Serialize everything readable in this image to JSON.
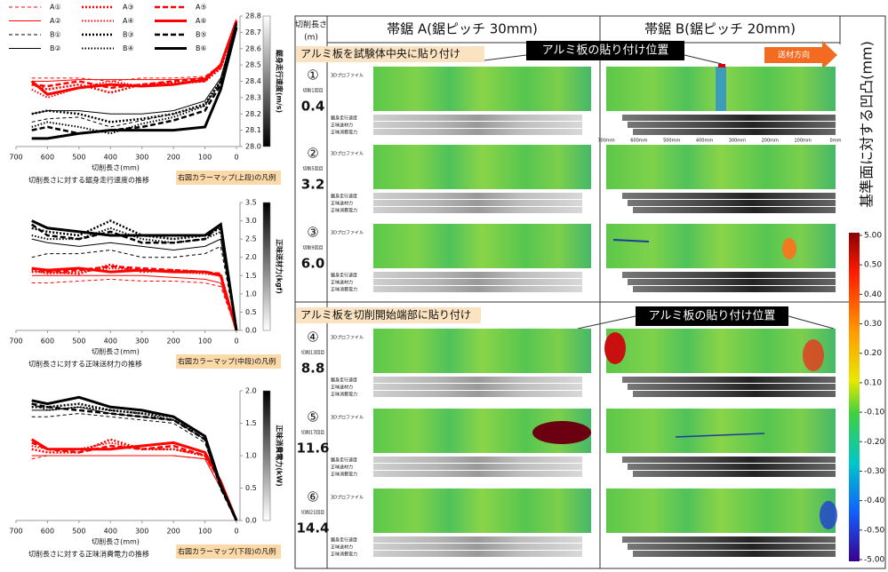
{
  "chart_data": [
    {
      "type": "line",
      "xlabel": "切削長さ(mm)",
      "ylabel": "鋸身走行速度(m/s)",
      "caption": "切削長さに対する鋸身走行速度の推移",
      "note": "右図カラーマップ(上段)の凡例",
      "legend": "top-left",
      "x": [
        650,
        600,
        500,
        400,
        300,
        200,
        100,
        50,
        0
      ],
      "xlim": [
        700,
        0
      ],
      "xticks": [
        700,
        600,
        500,
        400,
        300,
        200,
        100,
        0
      ],
      "ylim": [
        28.0,
        28.8
      ],
      "yticks": [
        {
          "value": 28.0,
          "label": "28.0"
        },
        28.1,
        28.2,
        28.3,
        28.4,
        28.5,
        28.6,
        28.7,
        28.8
      ],
      "series": [
        {
          "name": "A①",
          "color": "#ff0000",
          "dash": "4 3",
          "width": 1,
          "values": [
            28.42,
            28.42,
            28.42,
            28.4,
            28.42,
            28.42,
            28.43,
            28.5,
            28.78
          ]
        },
        {
          "name": "A②",
          "color": "#ff0000",
          "dash": "solid",
          "width": 1,
          "values": [
            28.4,
            28.4,
            28.41,
            28.41,
            28.41,
            28.41,
            28.42,
            28.5,
            28.78
          ]
        },
        {
          "name": "A③",
          "color": "#ff0000",
          "dash": "2 2",
          "width": 2.5,
          "values": [
            28.38,
            28.35,
            28.38,
            28.33,
            28.38,
            28.39,
            28.4,
            28.48,
            28.76
          ]
        },
        {
          "name": "A④",
          "color": "#ff0000",
          "dash": "1.5 2",
          "width": 2,
          "values": [
            28.35,
            28.3,
            28.36,
            28.4,
            28.37,
            28.38,
            28.4,
            28.48,
            28.76
          ]
        },
        {
          "name": "A⑤",
          "color": "#ff0000",
          "dash": "6 3",
          "width": 2.5,
          "values": [
            28.38,
            28.37,
            28.4,
            28.36,
            28.38,
            28.4,
            28.42,
            28.5,
            28.77
          ]
        },
        {
          "name": "A⑥",
          "color": "#ff0000",
          "dash": "solid",
          "width": 3,
          "values": [
            28.4,
            28.32,
            28.36,
            28.38,
            28.37,
            28.38,
            28.41,
            28.5,
            28.77
          ]
        },
        {
          "name": "B①",
          "color": "#000000",
          "dash": "4 3",
          "width": 1,
          "values": [
            28.15,
            28.17,
            28.18,
            28.12,
            28.16,
            28.2,
            28.25,
            28.4,
            28.75
          ]
        },
        {
          "name": "B②",
          "color": "#000000",
          "dash": "solid",
          "width": 1,
          "values": [
            28.2,
            28.22,
            28.22,
            28.2,
            28.2,
            28.22,
            28.28,
            28.42,
            28.76
          ]
        },
        {
          "name": "B③",
          "color": "#000000",
          "dash": "2 2",
          "width": 2.5,
          "values": [
            28.2,
            28.22,
            28.2,
            28.15,
            28.17,
            28.2,
            28.26,
            28.4,
            28.76
          ]
        },
        {
          "name": "B④",
          "color": "#000000",
          "dash": "1.5 2",
          "width": 2,
          "values": [
            28.12,
            28.15,
            28.12,
            28.08,
            28.14,
            28.18,
            28.25,
            28.4,
            28.75
          ]
        },
        {
          "name": "B⑤",
          "color": "#000000",
          "dash": "6 3",
          "width": 2.5,
          "values": [
            28.1,
            28.12,
            28.08,
            28.1,
            28.12,
            28.16,
            28.22,
            28.38,
            28.75
          ]
        },
        {
          "name": "B⑥",
          "color": "#000000",
          "dash": "solid",
          "width": 3,
          "values": [
            28.05,
            28.05,
            28.08,
            28.1,
            28.1,
            28.1,
            28.12,
            28.35,
            28.73
          ]
        }
      ]
    },
    {
      "type": "line",
      "xlabel": "切削長さ(mm)",
      "ylabel": "正味送材力(kgf)",
      "caption": "切削長さに対する正味送材力の推移",
      "note": "右図カラーマップ(中段)の凡例",
      "x": [
        650,
        600,
        500,
        400,
        300,
        200,
        100,
        50,
        0
      ],
      "xlim": [
        700,
        0
      ],
      "xticks": [
        700,
        600,
        500,
        400,
        300,
        200,
        100,
        0
      ],
      "ylim": [
        0,
        3.5
      ],
      "yticks": [
        {
          "value": 0,
          "label": "0.0"
        },
        0.5,
        {
          "value": 1,
          "label": "1.0"
        },
        1.5,
        {
          "value": 2,
          "label": "2.0"
        },
        2.5,
        {
          "value": 3,
          "label": "3.0"
        },
        3.5
      ],
      "series": [
        {
          "color": "#ff0000",
          "dash": "4 3",
          "width": 1,
          "values": [
            1.3,
            1.3,
            1.35,
            1.4,
            1.35,
            1.35,
            1.3,
            1.2,
            0
          ]
        },
        {
          "color": "#ff0000",
          "dash": "solid",
          "width": 1,
          "values": [
            1.5,
            1.5,
            1.5,
            1.5,
            1.5,
            1.45,
            1.4,
            1.3,
            0
          ]
        },
        {
          "color": "#ff0000",
          "dash": "2 2",
          "width": 2.5,
          "values": [
            1.6,
            1.6,
            1.55,
            1.8,
            1.6,
            1.65,
            1.6,
            1.5,
            0
          ]
        },
        {
          "color": "#ff0000",
          "dash": "1.5 2",
          "width": 2,
          "values": [
            1.65,
            1.55,
            1.6,
            1.7,
            1.65,
            1.6,
            1.55,
            1.5,
            0
          ]
        },
        {
          "color": "#ff0000",
          "dash": "6 3",
          "width": 2.5,
          "values": [
            1.7,
            1.6,
            1.65,
            1.75,
            1.7,
            1.65,
            1.6,
            1.55,
            0
          ]
        },
        {
          "color": "#ff0000",
          "dash": "solid",
          "width": 3,
          "values": [
            1.7,
            1.65,
            1.7,
            1.6,
            1.65,
            1.6,
            1.6,
            1.5,
            0
          ]
        },
        {
          "color": "#000000",
          "dash": "4 3",
          "width": 1,
          "values": [
            2.0,
            2.1,
            2.1,
            2.2,
            2.0,
            2.0,
            2.1,
            2.3,
            0
          ]
        },
        {
          "color": "#000000",
          "dash": "solid",
          "width": 1,
          "values": [
            2.5,
            2.4,
            2.3,
            2.4,
            2.3,
            2.2,
            2.3,
            2.5,
            0
          ]
        },
        {
          "color": "#000000",
          "dash": "2 2",
          "width": 2.5,
          "values": [
            2.8,
            2.7,
            2.6,
            3.0,
            2.6,
            2.5,
            2.6,
            2.8,
            0
          ]
        },
        {
          "color": "#000000",
          "dash": "1.5 2",
          "width": 2,
          "values": [
            2.6,
            2.5,
            2.5,
            2.8,
            2.5,
            2.4,
            2.5,
            2.7,
            0
          ]
        },
        {
          "color": "#000000",
          "dash": "6 3",
          "width": 2.5,
          "values": [
            2.9,
            2.6,
            2.5,
            2.7,
            2.4,
            2.4,
            2.5,
            2.9,
            0
          ]
        },
        {
          "color": "#000000",
          "dash": "solid",
          "width": 3,
          "values": [
            3.0,
            2.8,
            2.7,
            2.6,
            2.6,
            2.6,
            2.6,
            2.9,
            0
          ]
        }
      ]
    },
    {
      "type": "line",
      "xlabel": "切削長さ(mm)",
      "ylabel": "正味消費電力(kW)",
      "caption": "切削長さに対する正味消費電力の推移",
      "note": "右図カラーマップ(下段)の凡例",
      "x": [
        650,
        600,
        500,
        400,
        300,
        200,
        100,
        50,
        0
      ],
      "xlim": [
        700,
        0
      ],
      "xticks": [
        700,
        600,
        500,
        400,
        300,
        200,
        100,
        0
      ],
      "ylim": [
        0,
        2.0
      ],
      "yticks": [
        {
          "value": 0,
          "label": "0.0"
        },
        0.5,
        {
          "value": 1,
          "label": "1.0"
        },
        1.5,
        {
          "value": 2,
          "label": "2.0"
        }
      ],
      "series": [
        {
          "color": "#ff0000",
          "dash": "4 3",
          "width": 1,
          "values": [
            0.95,
            1.0,
            1.0,
            1.0,
            1.0,
            1.0,
            0.95,
            0.5,
            0
          ]
        },
        {
          "color": "#ff0000",
          "dash": "solid",
          "width": 1,
          "values": [
            1.0,
            1.0,
            1.0,
            1.0,
            1.0,
            1.0,
            0.95,
            0.5,
            0
          ]
        },
        {
          "color": "#ff0000",
          "dash": "2 2",
          "width": 2.5,
          "values": [
            1.1,
            1.05,
            1.05,
            1.25,
            1.1,
            1.1,
            1.0,
            0.6,
            0
          ]
        },
        {
          "color": "#ff0000",
          "dash": "1.5 2",
          "width": 2,
          "values": [
            1.15,
            1.1,
            1.1,
            1.2,
            1.1,
            1.1,
            1.0,
            0.6,
            0
          ]
        },
        {
          "color": "#ff0000",
          "dash": "6 3",
          "width": 2.5,
          "values": [
            1.2,
            1.1,
            1.05,
            1.15,
            1.1,
            1.15,
            1.0,
            0.6,
            0
          ]
        },
        {
          "color": "#ff0000",
          "dash": "solid",
          "width": 3,
          "values": [
            1.25,
            1.1,
            1.1,
            1.1,
            1.15,
            1.2,
            1.05,
            0.6,
            0
          ]
        },
        {
          "color": "#000000",
          "dash": "4 3",
          "width": 1,
          "values": [
            1.6,
            1.6,
            1.65,
            1.6,
            1.55,
            1.5,
            1.2,
            0.5,
            0
          ]
        },
        {
          "color": "#000000",
          "dash": "solid",
          "width": 1,
          "values": [
            1.7,
            1.7,
            1.75,
            1.65,
            1.6,
            1.55,
            1.25,
            0.5,
            0
          ]
        },
        {
          "color": "#000000",
          "dash": "2 2",
          "width": 2.5,
          "values": [
            1.75,
            1.75,
            1.8,
            1.7,
            1.65,
            1.6,
            1.3,
            0.55,
            0
          ]
        },
        {
          "color": "#000000",
          "dash": "1.5 2",
          "width": 2,
          "values": [
            1.8,
            1.7,
            1.75,
            1.7,
            1.65,
            1.55,
            1.3,
            0.55,
            0
          ]
        },
        {
          "color": "#000000",
          "dash": "6 3",
          "width": 2.5,
          "values": [
            1.8,
            1.75,
            1.7,
            1.65,
            1.6,
            1.55,
            1.25,
            0.5,
            0
          ]
        },
        {
          "color": "#000000",
          "dash": "solid",
          "width": 3,
          "values": [
            1.85,
            1.8,
            1.9,
            1.75,
            1.7,
            1.6,
            1.3,
            0.55,
            0
          ]
        }
      ]
    }
  ],
  "panel": {
    "length_header": [
      "切削長さ",
      "(m)"
    ],
    "saw_a": "帯鋸 A(鋸ピッチ 30mm)",
    "saw_b": "帯鋸 B(鋸ピッチ 20mm)",
    "callout_center": "アルミ板を試験体中央に貼り付け",
    "position_label": "アルミ板の貼り付け位置",
    "callout_end": "アルミ板を切削開始端部に貼り付け",
    "feed_direction": "送材方向",
    "profile_label": "3Dプロファイル",
    "bar_labels": [
      "鋸身走行速度",
      "正味送材力",
      "正味消費電力"
    ],
    "ruler": [
      "700mm",
      "600mm",
      "500mm",
      "400mm",
      "300mm",
      "200mm",
      "100mm",
      "0mm"
    ],
    "rows": [
      {
        "mark": "①",
        "length": "0.4",
        "pass": "切削1回目"
      },
      {
        "mark": "②",
        "length": "3.2",
        "pass": "切削5回目"
      },
      {
        "mark": "③",
        "length": "6.0",
        "pass": "切削9回目"
      },
      {
        "mark": "④",
        "length": "8.8",
        "pass": "切削13回目"
      },
      {
        "mark": "⑤",
        "length": "11.6",
        "pass": "切削17回目"
      },
      {
        "mark": "⑥",
        "length": "14.4",
        "pass": "切削21回目"
      }
    ],
    "colorbar": {
      "title": "基準面に対する凹凸(mm)",
      "ticks": [
        {
          "value": 5,
          "label": "5.00"
        },
        {
          "value": 0.5,
          "label": "0.50"
        },
        {
          "value": 0.4,
          "label": "0.40"
        },
        {
          "value": 0.3,
          "label": "0.30"
        },
        {
          "value": 0.2,
          "label": "0.20"
        },
        {
          "value": 0.1,
          "label": "0.10"
        },
        {
          "value": -0.1,
          "label": "-0.10"
        },
        {
          "value": -0.2,
          "label": "-0.20"
        },
        {
          "value": -0.3,
          "label": "-0.30"
        },
        {
          "value": -0.4,
          "label": "-0.40"
        },
        {
          "value": -0.5,
          "label": "-0.50"
        },
        {
          "value": -5,
          "label": "-5.00"
        }
      ]
    }
  }
}
